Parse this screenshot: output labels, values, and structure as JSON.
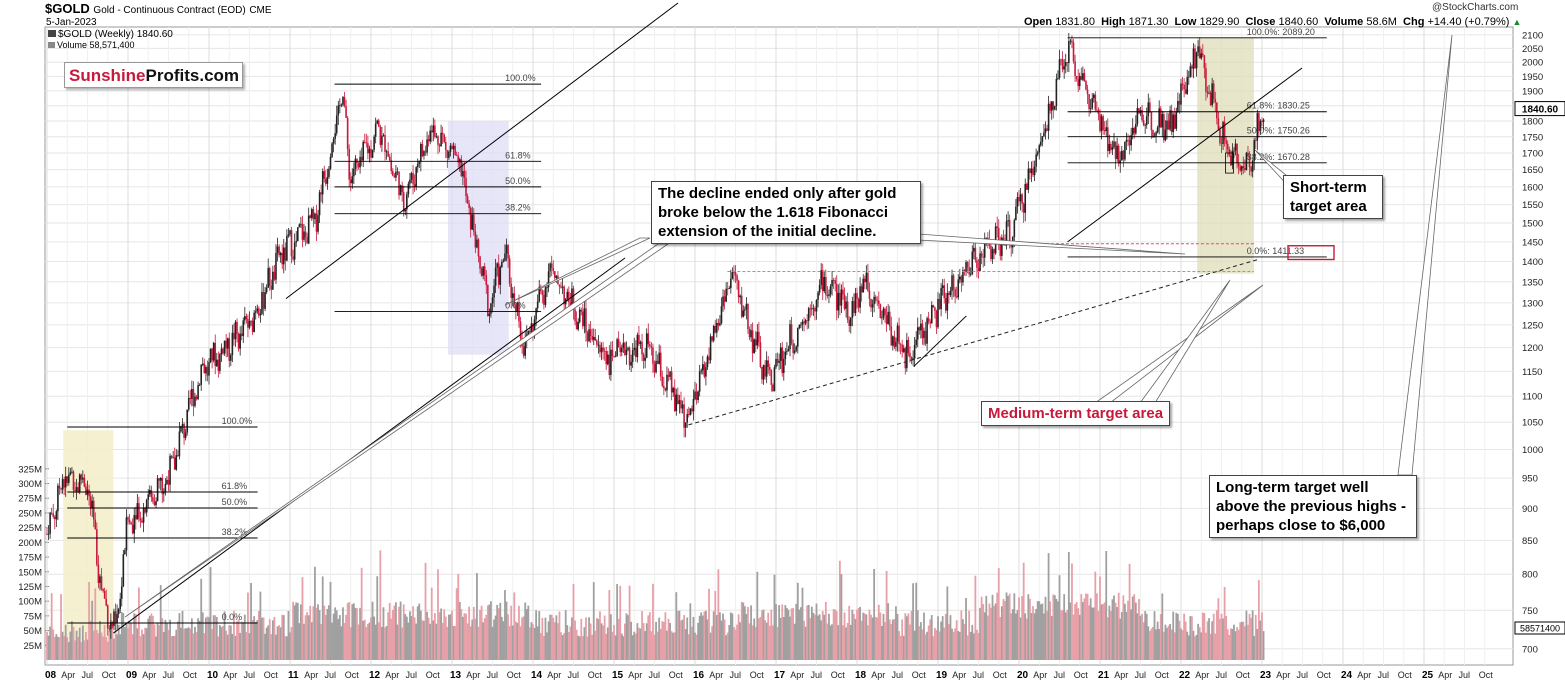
{
  "header": {
    "symbol": "$GOLD",
    "description": "Gold - Continuous Contract (EOD)",
    "exchange": "CME",
    "date": "5-Jan-2023",
    "series_label": "$GOLD (Weekly) 1840.60",
    "volume_label": "Volume 58,571,400",
    "watermark": "@StockCharts.com",
    "stats": {
      "open_label": "Open",
      "open": "1831.80",
      "high_label": "High",
      "high": "1871.30",
      "low_label": "Low",
      "low": "1829.90",
      "close_label": "Close",
      "close": "1840.60",
      "volume_label": "Volume",
      "volume": "58.6M",
      "chg_label": "Chg",
      "chg": "+14.40 (+0.79%)"
    }
  },
  "logo": {
    "part1": "Sunshine",
    "part2": "Profits.com"
  },
  "colors": {
    "up": "#222222",
    "down": "#c8193c",
    "vol_up": "#a0a0a0",
    "vol_down": "#e8a0a8",
    "highlight_yellow": "#f3eec8",
    "highlight_blue": "#dcdcf5",
    "highlight_green": "#dedcb4",
    "accent_red": "#c8193c",
    "fib_line": "#000000"
  },
  "chart_data": {
    "type": "candlestick",
    "price_axis": {
      "scale": "log",
      "ticks": [
        700,
        750,
        800,
        850,
        900,
        950,
        1000,
        1050,
        1100,
        1150,
        1200,
        1250,
        1300,
        1350,
        1400,
        1450,
        1500,
        1550,
        1600,
        1650,
        1700,
        1750,
        1800,
        1850,
        1900,
        1950,
        2000,
        2050,
        2100
      ],
      "range": [
        680,
        2130
      ]
    },
    "volume_axis": {
      "ticks": [
        "25M",
        "50M",
        "75M",
        "100M",
        "125M",
        "150M",
        "175M",
        "200M",
        "225M",
        "250M",
        "275M",
        "300M",
        "325M"
      ],
      "range": [
        0,
        340
      ]
    },
    "x_axis": {
      "years": [
        "08",
        "09",
        "10",
        "11",
        "12",
        "13",
        "14",
        "15",
        "16",
        "17",
        "18",
        "19",
        "20",
        "21",
        "22",
        "23",
        "24",
        "25"
      ],
      "months": [
        "Apr",
        "Jul",
        "Oct"
      ],
      "trailing_months": [
        "Apr",
        "Jul",
        "Oct"
      ]
    },
    "last_price_label": "1840.60",
    "last_volume_label": "58571400",
    "price_anchors": [
      [
        2008.0,
        860
      ],
      [
        2008.2,
        950
      ],
      [
        2008.5,
        940
      ],
      [
        2008.7,
        760
      ],
      [
        2008.85,
        720
      ],
      [
        2009.0,
        880
      ],
      [
        2009.5,
        950
      ],
      [
        2009.9,
        1150
      ],
      [
        2010.5,
        1250
      ],
      [
        2010.9,
        1420
      ],
      [
        2011.3,
        1500
      ],
      [
        2011.65,
        1900
      ],
      [
        2011.75,
        1620
      ],
      [
        2012.1,
        1780
      ],
      [
        2012.4,
        1560
      ],
      [
        2012.75,
        1780
      ],
      [
        2013.1,
        1660
      ],
      [
        2013.45,
        1290
      ],
      [
        2013.65,
        1420
      ],
      [
        2013.9,
        1200
      ],
      [
        2014.2,
        1380
      ],
      [
        2014.9,
        1180
      ],
      [
        2015.4,
        1200
      ],
      [
        2015.92,
        1050
      ],
      [
        2016.45,
        1370
      ],
      [
        2016.9,
        1130
      ],
      [
        2017.6,
        1350
      ],
      [
        2017.95,
        1280
      ],
      [
        2018.1,
        1360
      ],
      [
        2018.6,
        1180
      ],
      [
        2019.0,
        1290
      ],
      [
        2019.5,
        1420
      ],
      [
        2019.9,
        1470
      ],
      [
        2020.2,
        1680
      ],
      [
        2020.6,
        2060
      ],
      [
        2020.9,
        1850
      ],
      [
        2021.2,
        1680
      ],
      [
        2021.5,
        1820
      ],
      [
        2021.9,
        1790
      ],
      [
        2022.2,
        2050
      ],
      [
        2022.55,
        1720
      ],
      [
        2022.8,
        1640
      ],
      [
        2023.02,
        1840
      ]
    ],
    "fibonacci_sets": [
      {
        "levels": [
          {
            "label": "100.0%"
          },
          {
            "label": "61.8%"
          },
          {
            "label": "50.0%"
          },
          {
            "label": "38.2%"
          },
          {
            "label": "0.0%"
          }
        ]
      },
      {
        "levels": [
          {
            "label": "100.0%"
          },
          {
            "label": "61.8%"
          },
          {
            "label": "50.0%"
          },
          {
            "label": "38.2%"
          },
          {
            "label": "0.0%"
          }
        ]
      },
      {
        "levels": [
          {
            "label": "100.0%: 2089.20"
          },
          {
            "label": "61.8%: 1830.25"
          },
          {
            "label": "50.0%: 1750.26"
          },
          {
            "label": "38.2%: 1670.28"
          },
          {
            "label": "0.0%: 1411.33"
          }
        ]
      }
    ]
  },
  "annotations": {
    "decline": "The decline ended only after gold broke below the 1.618 Fibonacci extension of the initial decline.",
    "short_term": "Short-term target area",
    "medium_term": "Medium-term target area",
    "long_term": "Long-term target well above the previous highs - perhaps close to $6,000"
  }
}
